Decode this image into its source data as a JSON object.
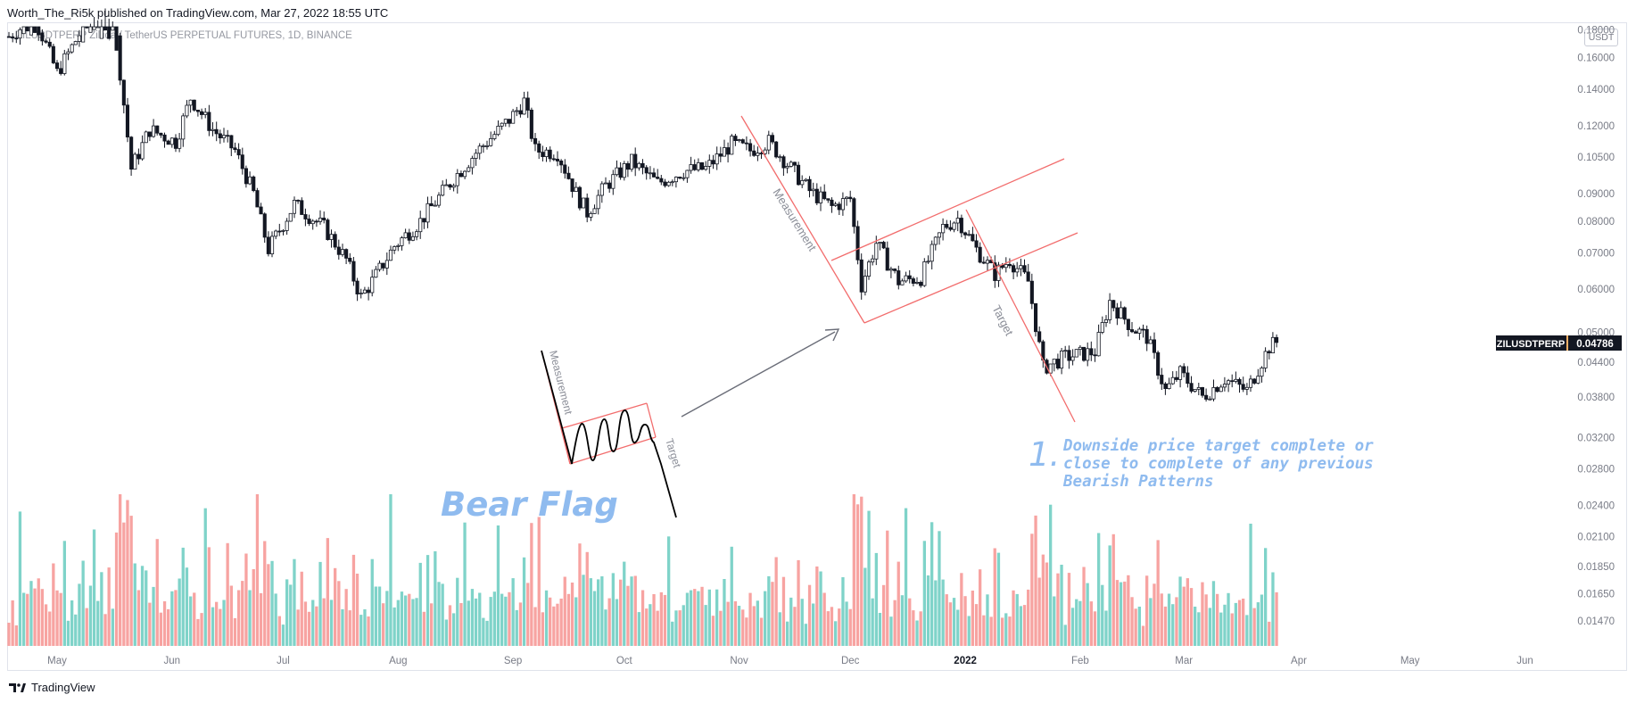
{
  "header": {
    "text": "Worth_The_Ri5k published on TradingView.com, Mar 27, 2022 18:55 UTC"
  },
  "symbol_line": "ZILUSDTPERP   Zilliqa / TetherUS PERPETUAL FUTURES, 1D, BINANCE",
  "currency": "USDT",
  "footer": {
    "brand": "TradingView"
  },
  "price_badge": {
    "symbol": "ZILUSDTPERP",
    "price": "0.04786"
  },
  "colors": {
    "up": "#26a69a",
    "down": "#ef5350",
    "vol_up": "#7fd3c9",
    "vol_down": "#f7a3a1",
    "candle": "#131722",
    "drawing": "#f26d6d",
    "annotation_text": "#8fbbef",
    "arrow": "#6a6d78"
  },
  "chart_data": {
    "type": "candlestick",
    "title": "ZILUSDTPERP 1D",
    "y_axis": {
      "scale": "log",
      "ticks": [
        "0.18000",
        "0.16000",
        "0.14000",
        "0.12000",
        "0.10500",
        "0.09000",
        "0.08000",
        "0.07000",
        "0.06000",
        "0.05000",
        "0.04400",
        "0.03800",
        "0.03200",
        "0.02800",
        "0.02400",
        "0.02100",
        "0.01850",
        "0.01650",
        "0.01470"
      ]
    },
    "x_axis": {
      "labels": [
        "May",
        "Jun",
        "Jul",
        "Aug",
        "Sep",
        "Oct",
        "Nov",
        "Dec",
        "2022",
        "Feb",
        "Mar",
        "Apr",
        "May",
        "Jun"
      ],
      "range": [
        "2021-04-18",
        "2022-06-30"
      ]
    },
    "price_path": [
      [
        "2021-04-18",
        0.175
      ],
      [
        "2021-04-25",
        0.19
      ],
      [
        "2021-05-01",
        0.15
      ],
      [
        "2021-05-06",
        0.172
      ],
      [
        "2021-05-11",
        0.197
      ],
      [
        "2021-05-16",
        0.198
      ],
      [
        "2021-05-21",
        0.1
      ],
      [
        "2021-05-26",
        0.118
      ],
      [
        "2021-06-02",
        0.112
      ],
      [
        "2021-06-06",
        0.135
      ],
      [
        "2021-06-12",
        0.118
      ],
      [
        "2021-06-18",
        0.108
      ],
      [
        "2021-06-23",
        0.09
      ],
      [
        "2021-06-27",
        0.071
      ],
      [
        "2021-07-04",
        0.086
      ],
      [
        "2021-07-12",
        0.078
      ],
      [
        "2021-07-18",
        0.068
      ],
      [
        "2021-07-22",
        0.058
      ],
      [
        "2021-07-25",
        0.062
      ],
      [
        "2021-07-31",
        0.072
      ],
      [
        "2021-08-07",
        0.08
      ],
      [
        "2021-08-16",
        0.096
      ],
      [
        "2021-08-22",
        0.107
      ],
      [
        "2021-08-31",
        0.123
      ],
      [
        "2021-09-04",
        0.133
      ],
      [
        "2021-09-07",
        0.108
      ],
      [
        "2021-09-13",
        0.107
      ],
      [
        "2021-09-18",
        0.09
      ],
      [
        "2021-09-21",
        0.083
      ],
      [
        "2021-09-26",
        0.093
      ],
      [
        "2021-10-03",
        0.103
      ],
      [
        "2021-10-10",
        0.094
      ],
      [
        "2021-10-17",
        0.099
      ],
      [
        "2021-10-23",
        0.1
      ],
      [
        "2021-10-30",
        0.111
      ],
      [
        "2021-11-04",
        0.108
      ],
      [
        "2021-11-09",
        0.112
      ],
      [
        "2021-11-14",
        0.102
      ],
      [
        "2021-11-20",
        0.091
      ],
      [
        "2021-11-26",
        0.085
      ],
      [
        "2021-12-01",
        0.088
      ],
      [
        "2021-12-04",
        0.061
      ],
      [
        "2021-12-08",
        0.073
      ],
      [
        "2021-12-14",
        0.062
      ],
      [
        "2021-12-20",
        0.063
      ],
      [
        "2021-12-26",
        0.078
      ],
      [
        "2021-12-30",
        0.081
      ],
      [
        "2022-01-04",
        0.071
      ],
      [
        "2022-01-09",
        0.064
      ],
      [
        "2022-01-13",
        0.068
      ],
      [
        "2022-01-18",
        0.062
      ],
      [
        "2022-01-22",
        0.043
      ],
      [
        "2022-01-28",
        0.045
      ],
      [
        "2022-02-05",
        0.046
      ],
      [
        "2022-02-09",
        0.057
      ],
      [
        "2022-02-15",
        0.051
      ],
      [
        "2022-02-19",
        0.049
      ],
      [
        "2022-02-24",
        0.039
      ],
      [
        "2022-02-28",
        0.042
      ],
      [
        "2022-03-06",
        0.038
      ],
      [
        "2022-03-12",
        0.041
      ],
      [
        "2022-03-18",
        0.039
      ],
      [
        "2022-03-24",
        0.047
      ],
      [
        "2022-03-26",
        0.0479
      ]
    ],
    "last_price": 0.04786,
    "volume": {
      "unit": "relative",
      "baseline": "bottom pane"
    },
    "drawings": [
      {
        "type": "trend_line",
        "label": "Measurement",
        "from": [
          "2021-11-01",
          0.125
        ],
        "to": [
          "2021-12-04",
          0.053
        ]
      },
      {
        "type": "channel_line",
        "from": [
          "2021-12-04",
          0.053
        ],
        "to": [
          "2022-02-08",
          0.075
        ]
      },
      {
        "type": "channel_line",
        "from": [
          "2021-12-01",
          0.069
        ],
        "to": [
          "2022-02-04",
          0.104
        ]
      },
      {
        "type": "trend_line",
        "label": "Target",
        "from": [
          "2021-12-31",
          0.081
        ],
        "to": [
          "2022-02-04",
          0.034
        ]
      }
    ]
  },
  "annotations": {
    "bear_flag": "Bear Flag",
    "illustration_measurement": "Measurement",
    "illustration_target": "Target",
    "note_number": "1.",
    "note_lines": [
      "Downside price target complete or",
      "close to complete of any previous",
      "Bearish Patterns"
    ]
  }
}
